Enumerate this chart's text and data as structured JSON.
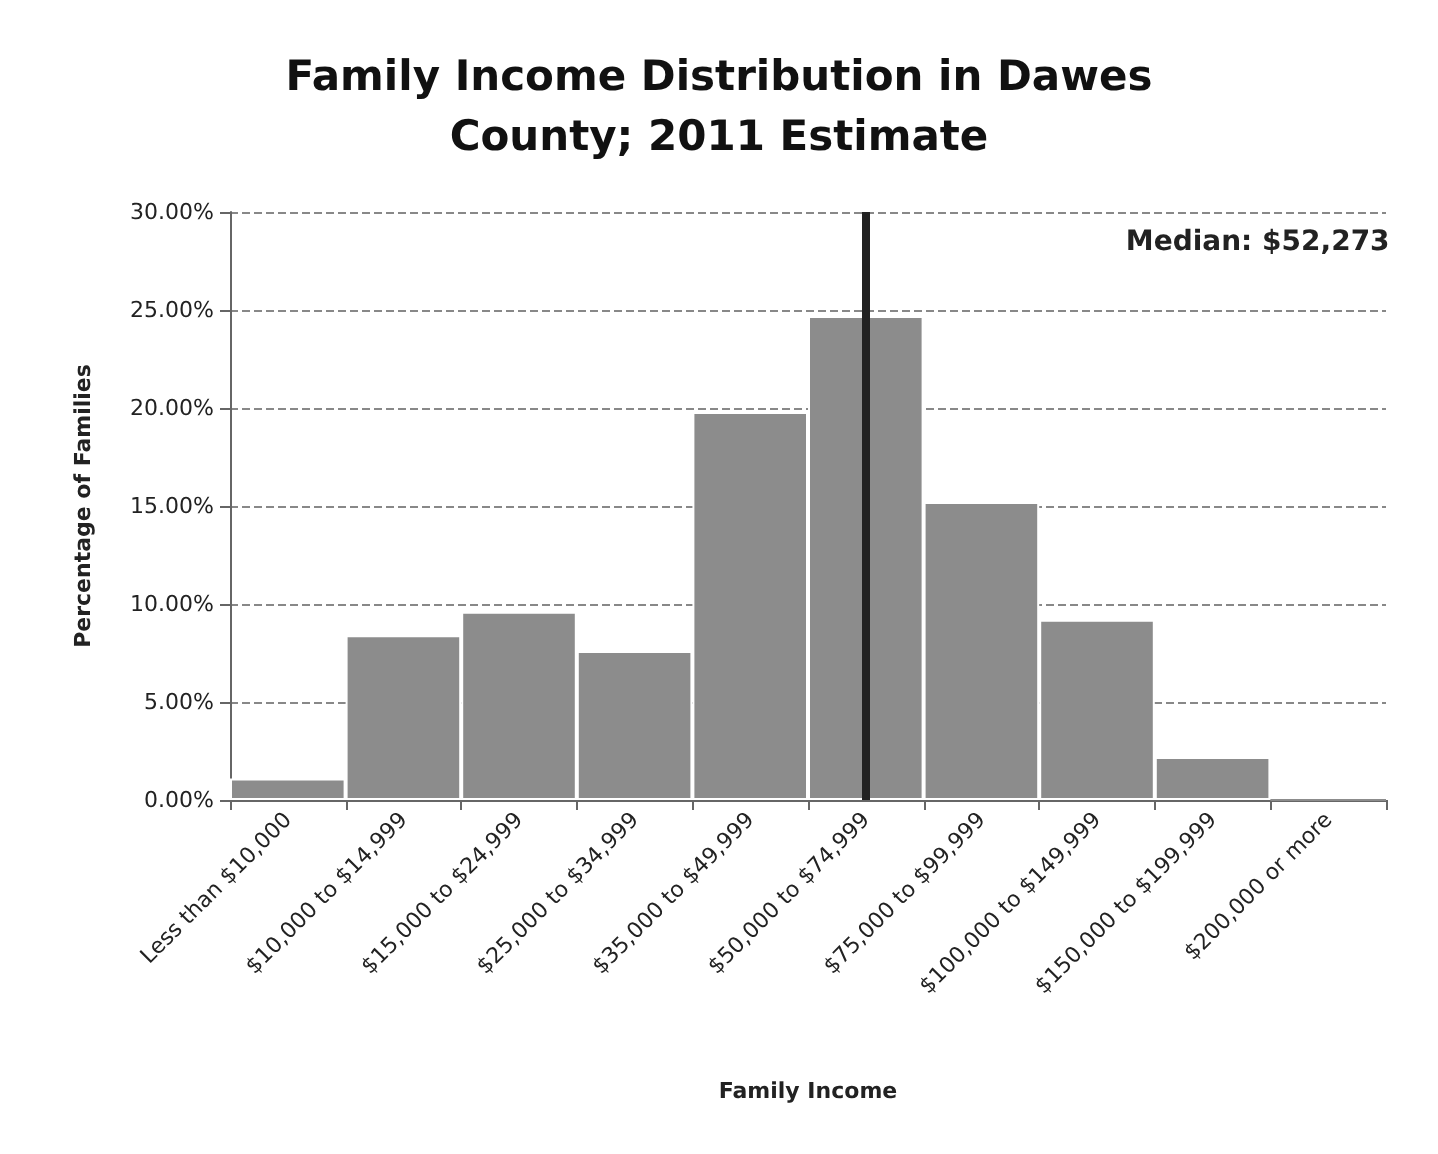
{
  "chart_data": {
    "type": "bar",
    "title": "Family Income Distribution in Dawes\nCounty; 2011 Estimate",
    "xlabel": "Family Income",
    "ylabel": "Percentage of Families",
    "categories": [
      "Less than $10,000",
      "$10,000 to $14,999",
      "$15,000 to $24,999",
      "$25,000 to $34,999",
      "$35,000 to $49,999",
      "$50,000 to $74,999",
      "$75,000 to $99,999",
      "$100,000 to $149,999",
      "$150,000 to $199,999",
      "$200,000 or more"
    ],
    "values": [
      1.1,
      8.4,
      9.6,
      7.6,
      19.8,
      24.7,
      15.2,
      9.2,
      2.2,
      0
    ],
    "color": "#8c8c8c",
    "ylim": [
      0,
      30
    ],
    "yticks": [
      {
        "value": 0,
        "label": "0.00%"
      },
      {
        "value": 5,
        "label": "5.00%"
      },
      {
        "value": 10,
        "label": "10.00%"
      },
      {
        "value": 15,
        "label": "15.00%"
      },
      {
        "value": 20,
        "label": "20.00%"
      },
      {
        "value": 25,
        "label": "25.00%"
      },
      {
        "value": 30,
        "label": "30.00%"
      }
    ],
    "grid": "y",
    "ref_lines": [
      {
        "axis": "x",
        "value": "$50,000 to $74,999",
        "label": "Median: $52,273",
        "color": "#222222"
      }
    ]
  }
}
